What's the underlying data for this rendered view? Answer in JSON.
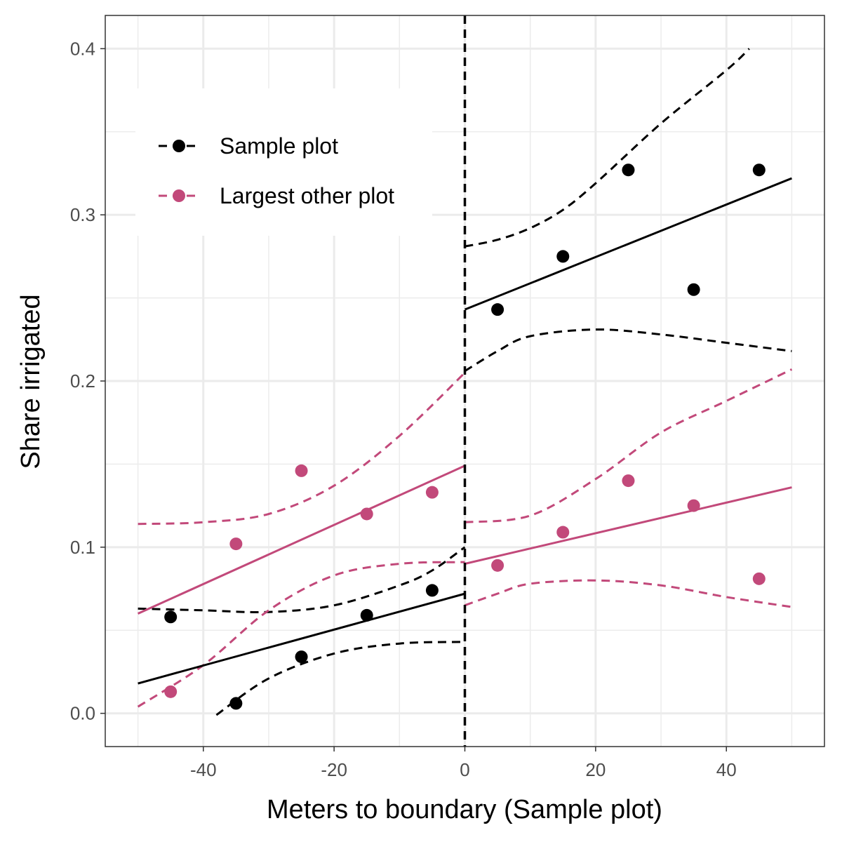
{
  "chart_data": {
    "type": "scatter",
    "xlabel": "Meters to boundary (Sample plot)",
    "ylabel": "Share irrigated",
    "xlim": [
      -55,
      55
    ],
    "ylim": [
      -0.02,
      0.42
    ],
    "x_ticks": [
      -40,
      -20,
      0,
      20,
      40
    ],
    "x_tick_labels": [
      "-40",
      "-20",
      "0",
      "20",
      "40"
    ],
    "y_ticks": [
      0.0,
      0.1,
      0.2,
      0.3,
      0.4
    ],
    "y_tick_labels": [
      "0.0",
      "0.1",
      "0.2",
      "0.3",
      "0.4"
    ],
    "grid": true,
    "legend_position": "top-left",
    "cutoff": 0,
    "series": [
      {
        "name": "Sample plot",
        "color": "#000000",
        "points": [
          [
            -45,
            0.058
          ],
          [
            -35,
            0.006
          ],
          [
            -25,
            0.034
          ],
          [
            -15,
            0.059
          ],
          [
            -5,
            0.074
          ],
          [
            5,
            0.243
          ],
          [
            15,
            0.275
          ],
          [
            25,
            0.327
          ],
          [
            35,
            0.255
          ],
          [
            45,
            0.327
          ]
        ],
        "fit_left": [
          [
            -50,
            0.018
          ],
          [
            0,
            0.072
          ]
        ],
        "fit_right": [
          [
            0,
            0.243
          ],
          [
            50,
            0.322
          ]
        ],
        "ci_left_upper": [
          [
            -50,
            0.063
          ],
          [
            -40,
            0.062
          ],
          [
            -30,
            0.061
          ],
          [
            -20,
            0.065
          ],
          [
            -10,
            0.077
          ],
          [
            -5,
            0.086
          ],
          [
            0,
            0.1
          ]
        ],
        "ci_left_lower": [
          [
            -38,
            -0.001
          ],
          [
            -30,
            0.021
          ],
          [
            -20,
            0.036
          ],
          [
            -10,
            0.042
          ],
          [
            0,
            0.043
          ]
        ],
        "ci_right_upper": [
          [
            0,
            0.281
          ],
          [
            5,
            0.285
          ],
          [
            10,
            0.292
          ],
          [
            15,
            0.303
          ],
          [
            20,
            0.319
          ],
          [
            30,
            0.355
          ],
          [
            40,
            0.387
          ],
          [
            43.5,
            0.4
          ]
        ],
        "ci_right_lower": [
          [
            0,
            0.206
          ],
          [
            5,
            0.218
          ],
          [
            10,
            0.227
          ],
          [
            20,
            0.231
          ],
          [
            30,
            0.228
          ],
          [
            40,
            0.223
          ],
          [
            50,
            0.218
          ]
        ]
      },
      {
        "name": "Largest other plot",
        "color": "#c2497a",
        "points": [
          [
            -45,
            0.013
          ],
          [
            -35,
            0.102
          ],
          [
            -25,
            0.146
          ],
          [
            -15,
            0.12
          ],
          [
            -5,
            0.133
          ],
          [
            5,
            0.089
          ],
          [
            15,
            0.109
          ],
          [
            25,
            0.14
          ],
          [
            35,
            0.125
          ],
          [
            45,
            0.081
          ]
        ],
        "fit_left": [
          [
            -50,
            0.06
          ],
          [
            0,
            0.149
          ]
        ],
        "fit_right": [
          [
            0,
            0.09
          ],
          [
            50,
            0.136
          ]
        ],
        "ci_left_upper": [
          [
            -50,
            0.114
          ],
          [
            -40,
            0.115
          ],
          [
            -30,
            0.12
          ],
          [
            -20,
            0.137
          ],
          [
            -10,
            0.167
          ],
          [
            0,
            0.205
          ]
        ],
        "ci_left_lower": [
          [
            -50,
            0.004
          ],
          [
            -40,
            0.029
          ],
          [
            -30,
            0.062
          ],
          [
            -20,
            0.083
          ],
          [
            -10,
            0.09
          ],
          [
            0,
            0.091
          ]
        ],
        "ci_right_upper": [
          [
            0,
            0.115
          ],
          [
            10,
            0.119
          ],
          [
            20,
            0.141
          ],
          [
            30,
            0.169
          ],
          [
            40,
            0.188
          ],
          [
            50,
            0.207
          ]
        ],
        "ci_right_lower": [
          [
            0,
            0.065
          ],
          [
            5,
            0.072
          ],
          [
            10,
            0.078
          ],
          [
            20,
            0.08
          ],
          [
            30,
            0.077
          ],
          [
            40,
            0.07
          ],
          [
            50,
            0.064
          ]
        ]
      }
    ]
  }
}
